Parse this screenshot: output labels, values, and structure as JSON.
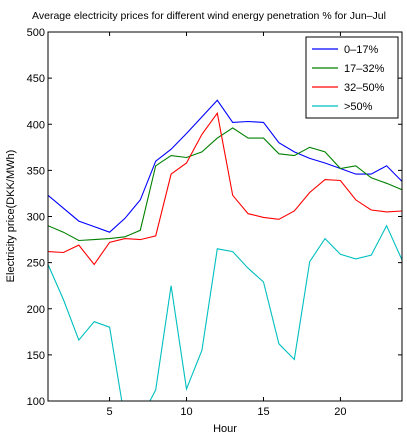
{
  "chart_data": {
    "type": "line",
    "title": "Average electricity prices for different wind energy penetration % for Jun–Jul",
    "xlabel": "Hour",
    "ylabel": "Electricity price(DKK/MWh)",
    "xlim": [
      1,
      24
    ],
    "ylim": [
      100,
      500
    ],
    "xticks": [
      5,
      10,
      15,
      20
    ],
    "yticks": [
      100,
      150,
      200,
      250,
      300,
      350,
      400,
      450,
      500
    ],
    "grid": false,
    "legend_position": "top-right",
    "x": [
      1,
      2,
      3,
      4,
      5,
      6,
      7,
      8,
      9,
      10,
      11,
      12,
      13,
      14,
      15,
      16,
      17,
      18,
      19,
      20,
      21,
      22,
      23,
      24
    ],
    "series": [
      {
        "name": "0–17%",
        "color": "#0000ff",
        "values": [
          323,
          309,
          295,
          289,
          283,
          298,
          318,
          360,
          373,
          390,
          408,
          426,
          402,
          403,
          402,
          380,
          370,
          363,
          358,
          352,
          346,
          346,
          355,
          338
        ]
      },
      {
        "name": "17–32%",
        "color": "#008000",
        "values": [
          290,
          283,
          274,
          275,
          276,
          278,
          285,
          355,
          366,
          364,
          370,
          385,
          396,
          385,
          385,
          368,
          366,
          375,
          370,
          352,
          355,
          342,
          336,
          329
        ]
      },
      {
        "name": "32–50%",
        "color": "#ff0000",
        "values": [
          262,
          261,
          269,
          248,
          272,
          276,
          275,
          279,
          346,
          358,
          389,
          412,
          323,
          303,
          299,
          297,
          306,
          326,
          340,
          339,
          318,
          307,
          305,
          306
        ]
      },
      {
        "name": ">50%",
        "color": "#00bfbf",
        "values": [
          248,
          210,
          166,
          186,
          180,
          79,
          80,
          112,
          225,
          113,
          155,
          265,
          262,
          244,
          229,
          162,
          145,
          251,
          276,
          259,
          254,
          258,
          290,
          253
        ]
      }
    ]
  }
}
